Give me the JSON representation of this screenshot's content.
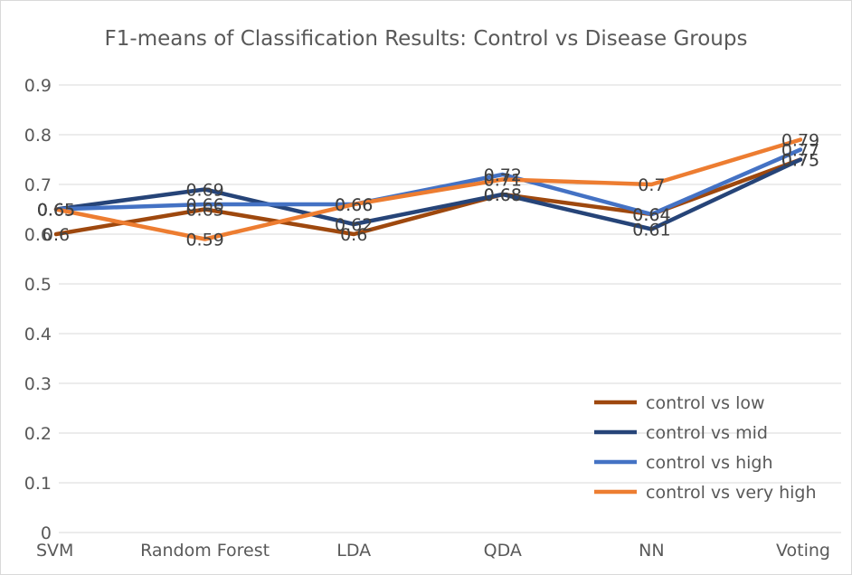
{
  "chart_data": {
    "type": "line",
    "title": "F1-means of Classification Results: Control vs Disease Groups",
    "xlabel": "",
    "ylabel": "",
    "categories": [
      "SVM",
      "Random Forest",
      "LDA",
      "QDA",
      "NN",
      "Voting"
    ],
    "ylim": [
      0,
      0.9
    ],
    "yticks": [
      "0",
      "0.1",
      "0.2",
      "0.3",
      "0.4",
      "0.5",
      "0.6",
      "0.7",
      "0.8",
      "0.9"
    ],
    "grid": true,
    "legend_position": "bottom-right",
    "series": [
      {
        "name": "control vs low",
        "color": "#9E480E",
        "values": [
          0.6,
          0.65,
          0.6,
          0.68,
          0.64,
          0.75
        ]
      },
      {
        "name": "control vs mid",
        "color": "#264478",
        "values": [
          0.65,
          0.69,
          0.62,
          0.68,
          0.61,
          0.75
        ]
      },
      {
        "name": "control vs high",
        "color": "#4472C4",
        "values": [
          0.65,
          0.66,
          0.66,
          0.72,
          0.64,
          0.77
        ]
      },
      {
        "name": "control vs very high",
        "color": "#ED7D31",
        "values": [
          0.65,
          0.59,
          0.66,
          0.71,
          0.7,
          0.79
        ]
      }
    ],
    "data_labels": true
  }
}
